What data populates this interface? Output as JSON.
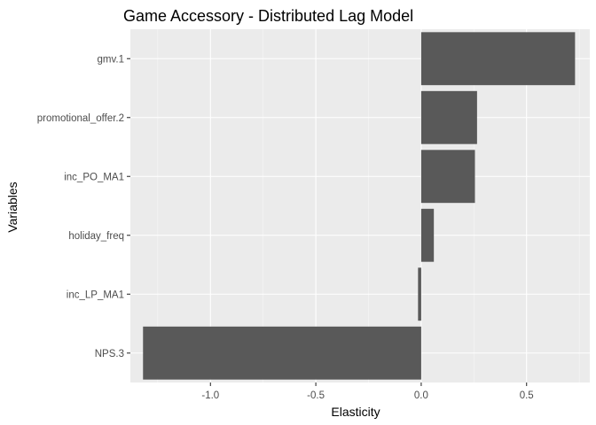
{
  "chart_data": {
    "type": "bar",
    "orientation": "horizontal",
    "title": "Game Accessory - Distributed Lag Model",
    "xlabel": "Elasticity",
    "ylabel": "Variables",
    "categories": [
      "gmv.1",
      "promotional_offer.2",
      "inc_PO_MA1",
      "holiday_freq",
      "inc_LP_MA1",
      "NPS.3"
    ],
    "values": [
      0.73,
      0.265,
      0.255,
      0.06,
      -0.015,
      -1.32
    ],
    "xlim": [
      -1.38,
      0.8
    ],
    "xticks": [
      -1.0,
      -0.5,
      0.0,
      0.5
    ],
    "xtick_labels": [
      "-1.0",
      "-0.5",
      "0.0",
      "0.5"
    ],
    "grid": true,
    "legend": "none",
    "colors": {
      "panel": "#ebebeb",
      "bar": "#595959",
      "grid": "#ffffff",
      "tick_text": "#4d4d4d"
    }
  }
}
